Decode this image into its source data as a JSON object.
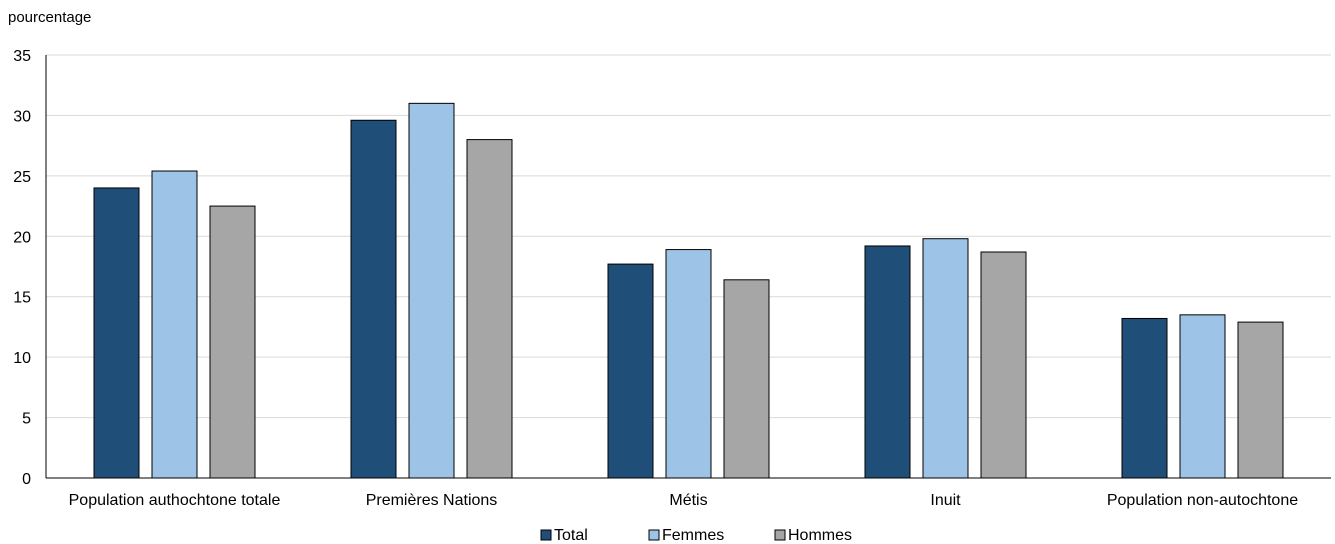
{
  "chart_data": {
    "type": "bar",
    "ylabel": "pourcentage",
    "ylim": [
      0,
      35
    ],
    "yticks": [
      0,
      5,
      10,
      15,
      20,
      25,
      30,
      35
    ],
    "grid": true,
    "legend_position": "bottom",
    "categories": [
      "Population authochtone totale",
      "Premières Nations",
      "Métis",
      "Inuit",
      "Population non-autochtone"
    ],
    "series": [
      {
        "name": "Total",
        "color": "#1f4e79",
        "values": [
          24.0,
          29.6,
          17.7,
          19.2,
          13.2
        ]
      },
      {
        "name": "Femmes",
        "color": "#9dc3e6",
        "values": [
          25.4,
          31.0,
          18.9,
          19.8,
          13.5
        ]
      },
      {
        "name": "Hommes",
        "color": "#a6a6a6",
        "values": [
          22.5,
          28.0,
          16.4,
          18.7,
          12.9
        ]
      }
    ]
  }
}
